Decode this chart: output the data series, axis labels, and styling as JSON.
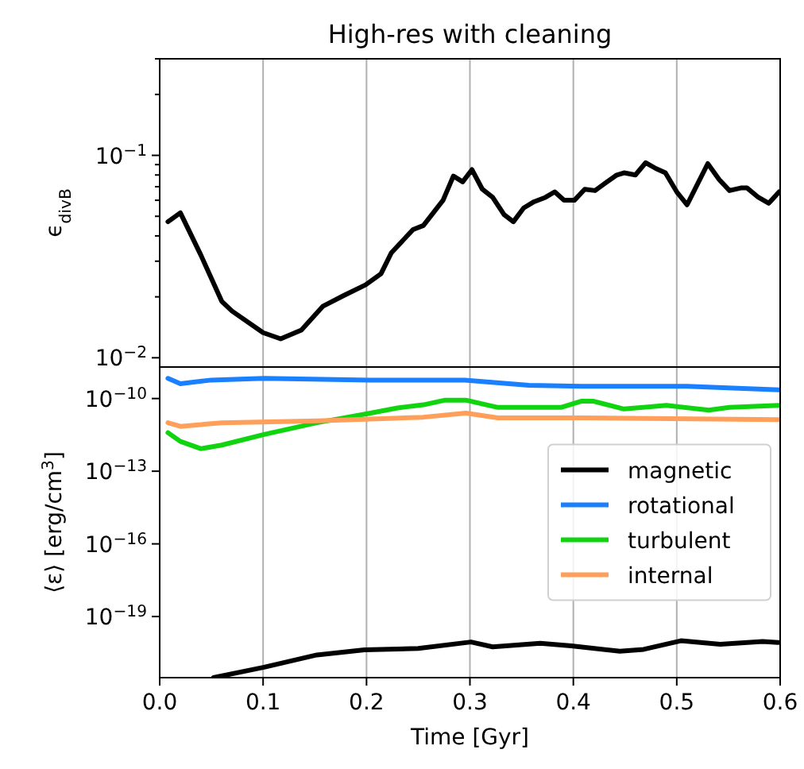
{
  "chart_data": [
    {
      "type": "line",
      "title": "High-res with cleaning",
      "ylabel": "ϵ$_{divB}$",
      "log": "y",
      "grid": "x",
      "tick_labels": "y",
      "legend": false,
      "xlim": [
        0,
        0.6
      ],
      "xticks": [
        0,
        0.1,
        0.2,
        0.3,
        0.4,
        0.5,
        0.6
      ],
      "ylim": [
        0.009,
        0.3
      ],
      "yticks": [
        {
          "value": 0.01,
          "label": "10$^{−2}$"
        },
        {
          "value": 0.1,
          "label": "10$^{−1}$"
        },
        {
          "value": 0.02,
          "label": null
        },
        {
          "value": 0.03,
          "label": null
        },
        {
          "value": 0.04,
          "label": null
        },
        {
          "value": 0.05,
          "label": null
        },
        {
          "value": 0.06,
          "label": null
        },
        {
          "value": 0.07,
          "label": null
        },
        {
          "value": 0.08,
          "label": null
        },
        {
          "value": 0.09,
          "label": null
        },
        {
          "value": 0.2,
          "label": null
        },
        {
          "value": 0.3,
          "label": null
        }
      ],
      "series": [
        {
          "color": "#000000",
          "x": [
            0.008,
            0.02,
            0.04,
            0.06,
            0.07,
            0.1,
            0.117,
            0.137,
            0.158,
            0.178,
            0.199,
            0.214,
            0.224,
            0.245,
            0.255,
            0.274,
            0.284,
            0.293,
            0.302,
            0.312,
            0.322,
            0.333,
            0.342,
            0.352,
            0.362,
            0.373,
            0.382,
            0.391,
            0.401,
            0.411,
            0.421,
            0.431,
            0.442,
            0.449,
            0.46,
            0.47,
            0.48,
            0.489,
            0.5,
            0.51,
            0.52,
            0.53,
            0.541,
            0.551,
            0.562,
            0.568,
            0.579,
            0.589,
            0.599
          ],
          "values": [
            0.047,
            0.052,
            0.032,
            0.019,
            0.017,
            0.0133,
            0.0124,
            0.0137,
            0.018,
            0.0203,
            0.0229,
            0.026,
            0.033,
            0.043,
            0.045,
            0.06,
            0.079,
            0.074,
            0.085,
            0.068,
            0.062,
            0.051,
            0.047,
            0.055,
            0.059,
            0.062,
            0.066,
            0.06,
            0.06,
            0.068,
            0.067,
            0.073,
            0.08,
            0.082,
            0.08,
            0.092,
            0.086,
            0.082,
            0.066,
            0.057,
            0.072,
            0.091,
            0.076,
            0.067,
            0.069,
            0.069,
            0.062,
            0.058,
            0.066
          ]
        }
      ]
    },
    {
      "type": "line",
      "xlabel": "Time [Gyr]",
      "ylabel": "⟨ε⟩ [erg/cm$^{3}$]",
      "log": "y",
      "grid": "x",
      "legend": "right",
      "xlim": [
        0,
        0.6
      ],
      "xticks": [
        {
          "value": 0,
          "label": "0.0"
        },
        {
          "value": 0.1,
          "label": "0.1"
        },
        {
          "value": 0.2,
          "label": "0.2"
        },
        {
          "value": 0.3,
          "label": "0.3"
        },
        {
          "value": 0.4,
          "label": "0.4"
        },
        {
          "value": 0.5,
          "label": "0.5"
        },
        {
          "value": 0.6,
          "label": "0.6"
        }
      ],
      "ylim": [
        3e-22,
        2e-09
      ],
      "yticks": [
        {
          "value": 1e-19,
          "label": "10$^{−19}$"
        },
        {
          "value": 1e-16,
          "label": "10$^{−16}$"
        },
        {
          "value": 1e-13,
          "label": "10$^{−13}$"
        },
        {
          "value": 1e-10,
          "label": "10$^{−10}$"
        }
      ],
      "series": [
        {
          "name": "magnetic",
          "color": "#000000",
          "x": [
            0.052,
            0.101,
            0.152,
            0.198,
            0.25,
            0.301,
            0.322,
            0.368,
            0.398,
            0.445,
            0.468,
            0.504,
            0.542,
            0.583,
            0.598
          ],
          "values": [
            3e-22,
            8.1e-22,
            2.6e-21,
            4.2e-21,
            4.8e-21,
            8.9e-21,
            5.6e-21,
            7.9e-21,
            6.2e-21,
            3.7e-21,
            4.4e-21,
            1e-20,
            7.2e-21,
            9.3e-21,
            8.5e-21
          ]
        },
        {
          "name": "rotational",
          "color": "#1a80ff",
          "x": [
            0.008,
            0.02,
            0.05,
            0.101,
            0.203,
            0.295,
            0.357,
            0.408,
            0.51,
            0.599
          ],
          "values": [
            6.8e-10,
            4.1e-10,
            5.8e-10,
            6.8e-10,
            5.8e-10,
            5.8e-10,
            3.5e-10,
            3.2e-10,
            3.2e-10,
            2.3e-10
          ]
        },
        {
          "name": "turbulent",
          "color": "#11d411",
          "x": [
            0.008,
            0.02,
            0.04,
            0.06,
            0.101,
            0.152,
            0.204,
            0.23,
            0.255,
            0.276,
            0.296,
            0.327,
            0.388,
            0.408,
            0.419,
            0.449,
            0.49,
            0.531,
            0.551,
            0.599
          ],
          "values": [
            3.9e-12,
            1.7e-12,
            8.5e-13,
            1.2e-12,
            3.3e-12,
            1e-11,
            2.5e-11,
            4.1e-11,
            5.5e-11,
            8.6e-11,
            8.6e-11,
            4.3e-11,
            4.3e-11,
            7.8e-11,
            7.8e-11,
            3.7e-11,
            5.2e-11,
            3.3e-11,
            4.3e-11,
            5.2e-11
          ]
        },
        {
          "name": "internal",
          "color": "#ff9f5a",
          "x": [
            0.008,
            0.02,
            0.06,
            0.153,
            0.255,
            0.296,
            0.327,
            0.408,
            0.599
          ],
          "values": [
            1e-11,
            7.1e-12,
            1e-11,
            1.2e-11,
            1.7e-11,
            2.5e-11,
            1.6e-11,
            1.6e-11,
            1.35e-11
          ]
        }
      ]
    }
  ]
}
